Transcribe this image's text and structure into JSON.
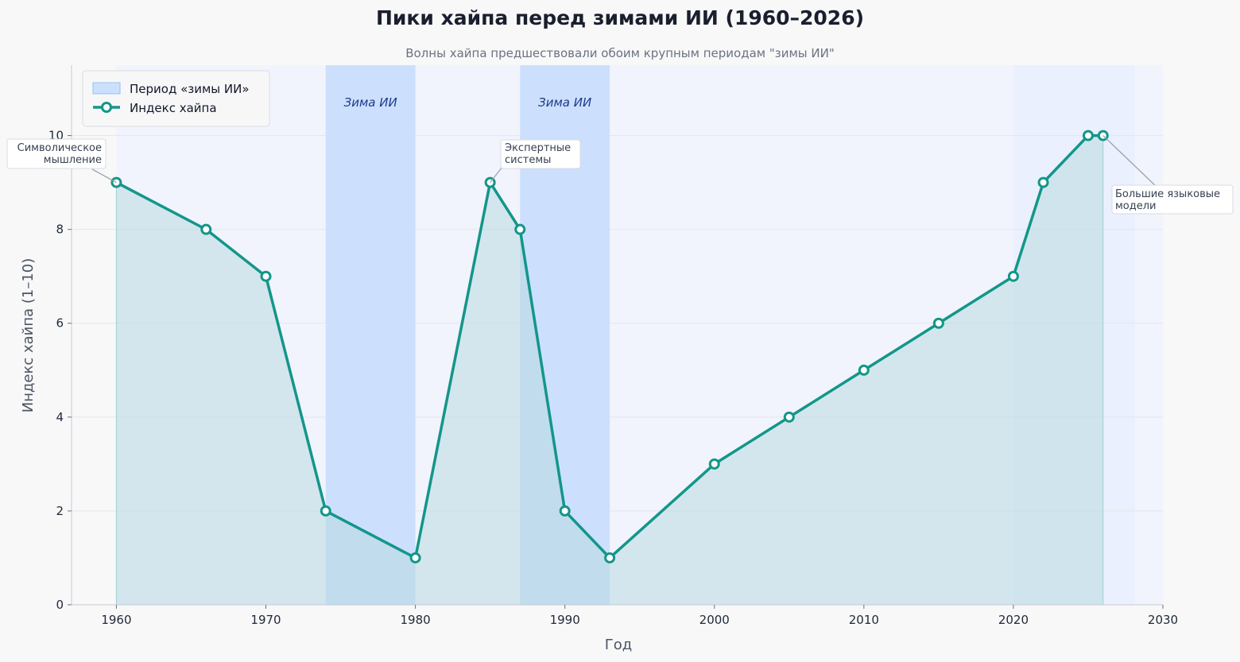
{
  "chart_data": {
    "type": "line",
    "title": "Пики хайпа перед зимами ИИ (1960–2026)",
    "subtitle": "Волны хайпа предшествовали обоим крупным периодам \"зимы ИИ\"",
    "xlabel": "Год",
    "ylabel": "Индекс хайпа (1–10)",
    "xlim": [
      1957,
      2030
    ],
    "ylim": [
      0,
      11.5
    ],
    "xticks": [
      1960,
      1970,
      1980,
      1990,
      2000,
      2010,
      2020,
      2030
    ],
    "yticks": [
      0,
      2,
      4,
      6,
      8,
      10
    ],
    "grid": "horizontal",
    "legend_position": "top-left",
    "series": [
      {
        "name": "Индекс хайпа",
        "color": "#13968a",
        "x": [
          1960,
          1966,
          1970,
          1974,
          1980,
          1985,
          1987,
          1990,
          1993,
          2000,
          2005,
          2010,
          2015,
          2020,
          2022,
          2025,
          2026
        ],
        "y": [
          9,
          8,
          7,
          2,
          1,
          9,
          8,
          2,
          1,
          3,
          4,
          5,
          6,
          7,
          9,
          10,
          10
        ]
      }
    ],
    "winter_periods": [
      {
        "start": 1974,
        "end": 1980,
        "label": "Зима ИИ"
      },
      {
        "start": 1987,
        "end": 1993,
        "label": "Зима ИИ"
      }
    ],
    "winter_legend_label": "Период «зимы ИИ»",
    "annotations": [
      {
        "lines": [
          "Символическое",
          "мышление"
        ],
        "x": 1960,
        "y": 9
      },
      {
        "lines": [
          "Экспертные",
          "системы"
        ],
        "x": 1985,
        "y": 9
      },
      {
        "lines": [
          "Большие языковые",
          "модели"
        ],
        "x": 2026,
        "y": 10
      }
    ],
    "colors": {
      "line": "#13968a",
      "fill": "#d4e6ea",
      "winter_band": "#cce0fd",
      "plot_bg": "#f1f4fc",
      "page_bg": "#f8f8f9"
    }
  }
}
